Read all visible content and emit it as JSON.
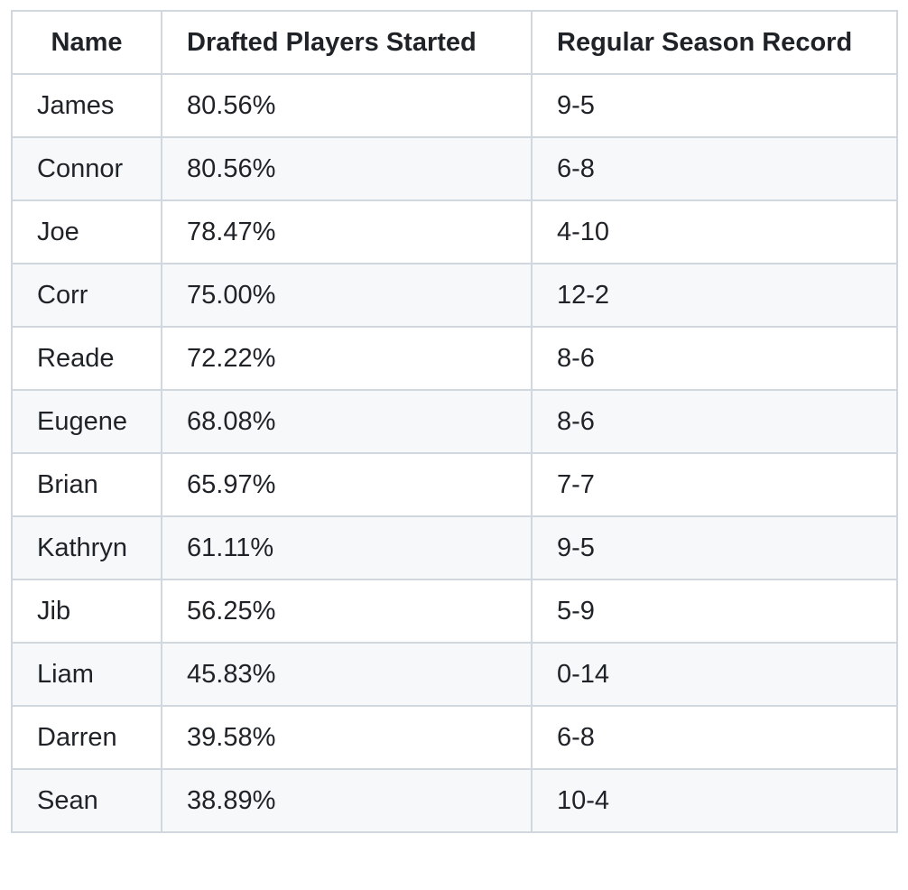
{
  "table": {
    "headers": {
      "name": "Name",
      "drafted": "Drafted Players Started",
      "record": "Regular Season Record"
    },
    "rows": [
      {
        "name": "James",
        "drafted": "80.56%",
        "record": "9-5"
      },
      {
        "name": "Connor",
        "drafted": "80.56%",
        "record": "6-8"
      },
      {
        "name": "Joe",
        "drafted": "78.47%",
        "record": "4-10"
      },
      {
        "name": "Corr",
        "drafted": "75.00%",
        "record": "12-2"
      },
      {
        "name": "Reade",
        "drafted": "72.22%",
        "record": "8-6"
      },
      {
        "name": "Eugene",
        "drafted": "68.08%",
        "record": "8-6"
      },
      {
        "name": "Brian",
        "drafted": "65.97%",
        "record": "7-7"
      },
      {
        "name": "Kathryn",
        "drafted": "61.11%",
        "record": "9-5"
      },
      {
        "name": "Jib",
        "drafted": "56.25%",
        "record": "5-9"
      },
      {
        "name": "Liam",
        "drafted": "45.83%",
        "record": "0-14"
      },
      {
        "name": "Darren",
        "drafted": "39.58%",
        "record": "6-8"
      },
      {
        "name": "Sean",
        "drafted": "38.89%",
        "record": "10-4"
      }
    ]
  },
  "colors": {
    "border": "#d0d7de",
    "stripe": "#f6f8fa",
    "text": "#1f2328",
    "background": "#ffffff"
  }
}
